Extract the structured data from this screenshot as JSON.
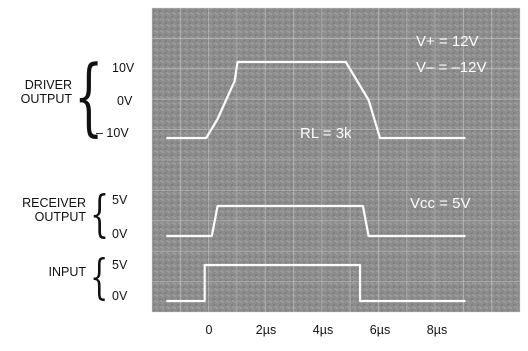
{
  "chart_data": {
    "type": "line",
    "title": "",
    "xlabel": "",
    "ylabel": "",
    "x_unit": "µs",
    "x_ticks": [
      {
        "value": 0,
        "label": "0"
      },
      {
        "value": 2,
        "label": "2µs"
      },
      {
        "value": 4,
        "label": "4µs"
      },
      {
        "value": 6,
        "label": "6µs"
      },
      {
        "value": 8,
        "label": "8µs"
      }
    ],
    "xlim": [
      -1.5,
      9
    ],
    "grid": true,
    "channels": [
      {
        "key": "driver",
        "label_lines": [
          "DRIVER",
          "OUTPUT"
        ],
        "y_ticks": [
          {
            "value": 10,
            "label": "10V"
          },
          {
            "value": 0,
            "label": "0V"
          },
          {
            "value": -10,
            "label": "– 10V"
          }
        ],
        "x": [
          -1.5,
          -0.1,
          0.3,
          0.6,
          0.9,
          1.0,
          4.8,
          5.2,
          5.6,
          6.0,
          9.0
        ],
        "values": [
          -10,
          -10,
          -5,
          0,
          5,
          10,
          10,
          5,
          0,
          -10,
          -10
        ]
      },
      {
        "key": "receiver",
        "label_lines": [
          "RECEIVER",
          "OUTPUT"
        ],
        "y_ticks": [
          {
            "value": 5,
            "label": "5V"
          },
          {
            "value": 0,
            "label": "0V"
          }
        ],
        "x": [
          -1.5,
          0.1,
          0.3,
          5.4,
          5.6,
          9.0
        ],
        "values": [
          0,
          0,
          5,
          5,
          0,
          0
        ]
      },
      {
        "key": "input",
        "label_lines": [
          "INPUT"
        ],
        "y_ticks": [
          {
            "value": 5,
            "label": "5V"
          },
          {
            "value": 0,
            "label": "0V"
          }
        ],
        "x": [
          -1.5,
          -0.15,
          -0.15,
          5.3,
          5.3,
          9.0
        ],
        "values": [
          0,
          0,
          5,
          5,
          0,
          0
        ]
      }
    ],
    "annotations": [
      "V+ = 12V",
      "V– = –12V",
      "RL = 3k",
      "Vcc = 5V"
    ]
  },
  "colors": {
    "screen": "#8c8c8c",
    "grid": "#d6d6d6",
    "trace": "#fbfbfb",
    "text": "#111111"
  }
}
